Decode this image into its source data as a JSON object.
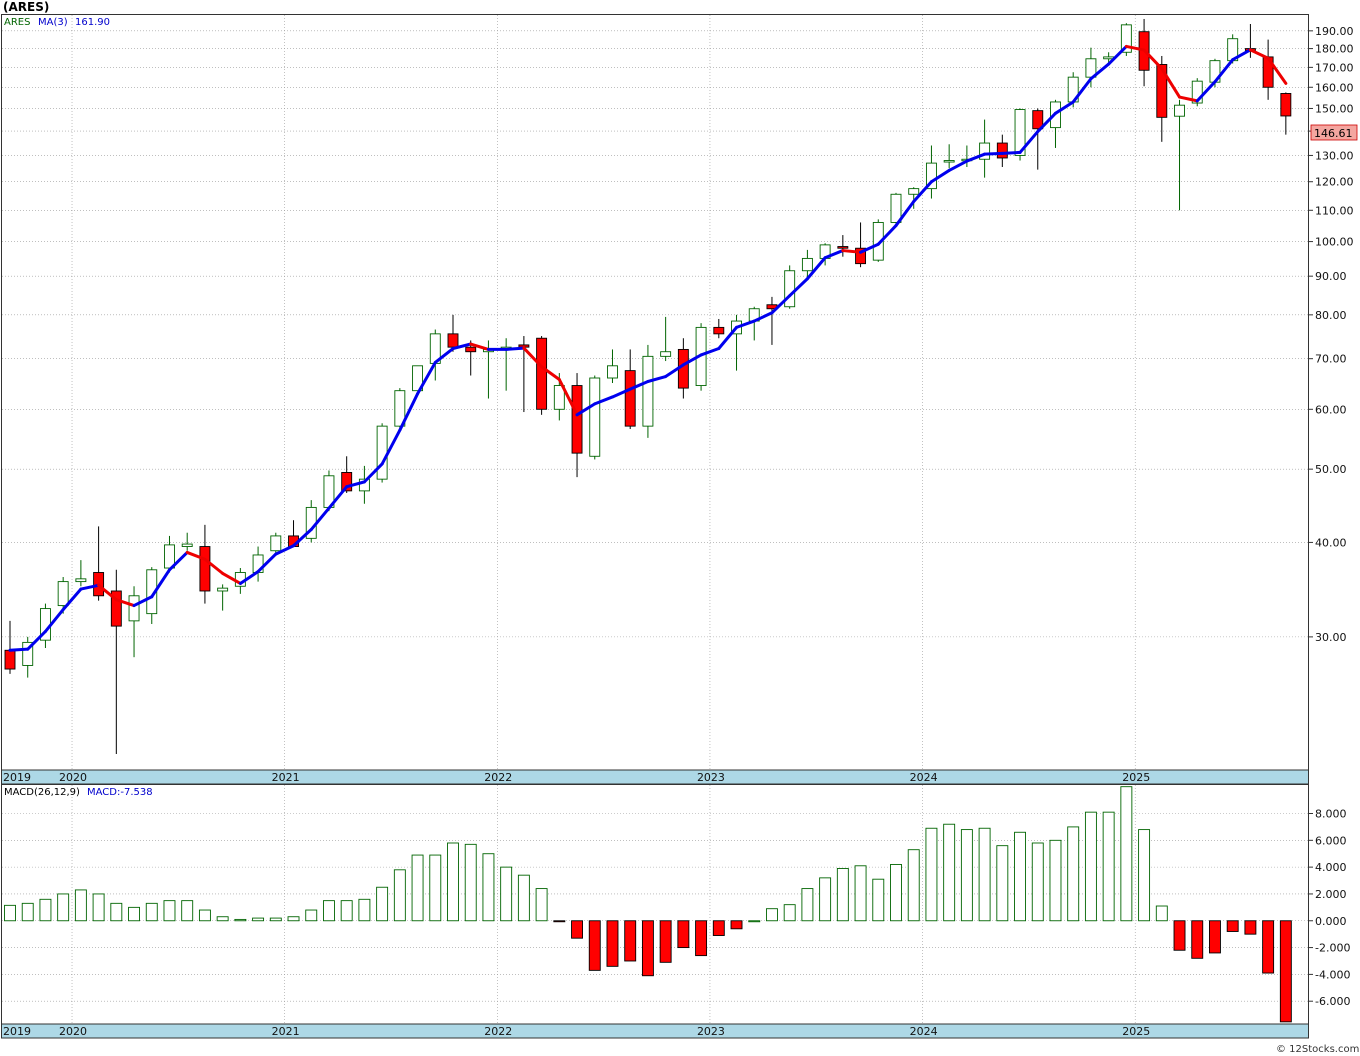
{
  "title": "(ARES)",
  "watermark": "© 12Stocks.com",
  "price_legend": {
    "symbol": "ARES",
    "ma_label": "MA(3)",
    "ma_value": "161.90"
  },
  "macd_legend": {
    "label": "MACD(26,12,9)",
    "value_label": "MACD:-7.538"
  },
  "last_price_tag": "146.61",
  "colors": {
    "up": "#006400",
    "down": "#ff0000",
    "ma_up": "#0000ee",
    "ma_down": "#ee0000",
    "axis_band": "#add8e6",
    "grid": "#999999"
  },
  "chart_data": [
    {
      "type": "candlestick",
      "interval": "monthly",
      "scale": "log",
      "ylim": [
        20,
        200
      ],
      "y_ticks": [
        "30.00",
        "40.00",
        "50.00",
        "60.00",
        "70.00",
        "80.00",
        "90.00",
        "100.00",
        "110.00",
        "120.00",
        "130.00",
        "140.00",
        "150.00",
        "160.00",
        "170.00",
        "180.00",
        "190.00"
      ],
      "x_year_labels": [
        "2019",
        "2020",
        "2021",
        "2022",
        "2023",
        "2024",
        "2025"
      ],
      "ma_period": 3,
      "candles": [
        [
          "2019-12",
          28.8,
          31.5,
          26.8,
          27.2
        ],
        [
          "2020-01",
          27.5,
          30.0,
          26.5,
          29.5
        ],
        [
          "2020-02",
          29.7,
          33.2,
          29.0,
          32.7
        ],
        [
          "2020-03",
          33.0,
          36.0,
          32.2,
          35.5
        ],
        [
          "2020-04",
          35.5,
          37.9,
          35.0,
          35.8
        ],
        [
          "2020-05",
          36.5,
          42.0,
          33.5,
          34.0
        ],
        [
          "2020-06",
          34.5,
          36.8,
          21.0,
          31.0
        ],
        [
          "2020-07",
          31.5,
          35.0,
          28.2,
          34.0
        ],
        [
          "2020-08",
          32.2,
          37.1,
          31.2,
          36.8
        ],
        [
          "2020-09",
          37.0,
          40.8,
          36.5,
          39.7
        ],
        [
          "2020-10",
          39.5,
          41.2,
          39.0,
          39.8
        ],
        [
          "2020-11",
          39.5,
          42.2,
          33.2,
          34.5
        ],
        [
          "2020-12",
          34.5,
          35.2,
          32.5,
          34.8
        ],
        [
          "2021-01",
          35.0,
          37.0,
          34.2,
          36.5
        ],
        [
          "2021-02",
          36.5,
          39.5,
          35.5,
          38.5
        ],
        [
          "2021-03",
          39.0,
          41.2,
          38.5,
          40.8
        ],
        [
          "2021-04",
          40.8,
          42.8,
          39.5,
          39.5
        ],
        [
          "2021-05",
          40.5,
          45.5,
          40.0,
          44.5
        ],
        [
          "2021-06",
          44.5,
          49.8,
          44.0,
          49.0
        ],
        [
          "2021-07",
          49.5,
          52.0,
          46.5,
          46.8
        ],
        [
          "2021-08",
          46.8,
          50.5,
          45.0,
          48.5
        ],
        [
          "2021-09",
          48.5,
          57.5,
          48.0,
          57.0
        ],
        [
          "2021-10",
          57.0,
          64.0,
          56.5,
          63.5
        ],
        [
          "2021-11",
          63.5,
          68.5,
          65.0,
          68.5
        ],
        [
          "2021-12",
          69.0,
          76.5,
          65.5,
          75.5
        ],
        [
          "2022-01",
          75.5,
          80.0,
          71.5,
          72.5
        ],
        [
          "2022-02",
          72.5,
          74.0,
          66.5,
          71.5
        ],
        [
          "2022-03",
          71.5,
          74.0,
          62.0,
          72.0
        ],
        [
          "2022-04",
          72.5,
          74.5,
          63.5,
          72.5
        ],
        [
          "2022-05",
          73.0,
          75.0,
          59.5,
          72.5
        ],
        [
          "2022-06",
          74.5,
          75.0,
          59.0,
          60.0
        ],
        [
          "2022-07",
          60.0,
          67.0,
          58.0,
          64.5
        ],
        [
          "2022-08",
          64.5,
          67.0,
          48.8,
          52.5
        ],
        [
          "2022-09",
          52.0,
          66.5,
          51.5,
          66.0
        ],
        [
          "2022-10",
          66.0,
          72.0,
          65.0,
          68.5
        ],
        [
          "2022-11",
          67.5,
          72.0,
          56.5,
          57.0
        ],
        [
          "2022-12",
          57.0,
          73.0,
          55.0,
          70.5
        ],
        [
          "2023-01",
          70.5,
          79.5,
          69.5,
          71.5
        ],
        [
          "2023-02",
          72.0,
          74.5,
          62.0,
          64.0
        ],
        [
          "2023-03",
          64.5,
          78.0,
          63.5,
          77.0
        ],
        [
          "2023-04",
          77.0,
          79.0,
          74.5,
          75.5
        ],
        [
          "2023-05",
          75.5,
          80.0,
          67.5,
          78.5
        ],
        [
          "2023-06",
          78.5,
          82.0,
          74.0,
          81.5
        ],
        [
          "2023-07",
          82.5,
          84.5,
          73.0,
          81.5
        ],
        [
          "2023-08",
          82.0,
          93.0,
          81.5,
          91.5
        ],
        [
          "2023-09",
          91.5,
          97.5,
          89.5,
          95.0
        ],
        [
          "2023-10",
          95.0,
          99.5,
          93.0,
          99.0
        ],
        [
          "2023-11",
          98.5,
          102.0,
          95.5,
          98.0
        ],
        [
          "2023-12",
          98.0,
          106.0,
          92.5,
          93.5
        ],
        [
          "2024-01",
          94.5,
          107.0,
          94.0,
          106.0
        ],
        [
          "2024-02",
          106.0,
          116.0,
          105.0,
          115.5
        ],
        [
          "2024-03",
          115.5,
          118.0,
          110.5,
          117.5
        ],
        [
          "2024-04",
          117.5,
          134.0,
          114.0,
          127.0
        ],
        [
          "2024-05",
          127.5,
          134.5,
          125.0,
          128.0
        ],
        [
          "2024-06",
          128.5,
          134.0,
          125.5,
          128.5
        ],
        [
          "2024-07",
          128.5,
          145.0,
          121.5,
          135.0
        ],
        [
          "2024-08",
          135.0,
          138.5,
          125.5,
          129.0
        ],
        [
          "2024-09",
          130.0,
          150.0,
          128.0,
          149.5
        ],
        [
          "2024-10",
          149.0,
          150.0,
          124.5,
          141.0
        ],
        [
          "2024-11",
          141.5,
          154.0,
          133.0,
          153.0
        ],
        [
          "2024-12",
          153.0,
          167.5,
          150.5,
          165.0
        ],
        [
          "2025-01",
          165.0,
          180.5,
          160.0,
          174.5
        ],
        [
          "2025-02",
          174.5,
          178.0,
          172.5,
          175.5
        ],
        [
          "2025-03",
          178.0,
          194.5,
          176.0,
          193.5
        ],
        [
          "2025-04",
          189.5,
          197.0,
          160.5,
          168.5
        ],
        [
          "2025-05",
          171.5,
          176.0,
          135.5,
          146.0
        ],
        [
          "2025-06",
          146.5,
          154.0,
          110.0,
          151.5
        ],
        [
          "2025-07",
          152.5,
          164.5,
          151.0,
          163.0
        ],
        [
          "2025-08",
          162.5,
          174.5,
          160.0,
          173.5
        ],
        [
          "2025-09",
          173.5,
          188.0,
          172.0,
          185.5
        ],
        [
          "2025-10",
          180.0,
          194.0,
          175.0,
          179.0
        ],
        [
          "2025-11",
          175.5,
          185.0,
          154.0,
          160.0
        ],
        [
          "2025-12",
          157.0,
          157.5,
          138.5,
          146.61
        ]
      ],
      "ma3": [
        28.8,
        28.9,
        30.5,
        32.6,
        34.7,
        35.1,
        33.6,
        33.0,
        33.9,
        36.8,
        38.8,
        38.0,
        36.4,
        35.3,
        36.6,
        38.6,
        39.6,
        41.6,
        44.4,
        47.4,
        48.1,
        50.8,
        56.3,
        62.9,
        69.2,
        72.2,
        73.2,
        72.0,
        72.0,
        72.3,
        68.3,
        65.7,
        59.0,
        61.0,
        62.3,
        63.8,
        65.3,
        66.3,
        68.7,
        70.8,
        72.2,
        77.0,
        78.5,
        80.5,
        84.8,
        89.3,
        95.2,
        97.3,
        96.8,
        99.2,
        105.0,
        113.0,
        120.0,
        124.2,
        127.8,
        130.5,
        130.8,
        131.2,
        139.8,
        147.8,
        153.0,
        164.2,
        171.7,
        181.2,
        179.2,
        169.3,
        155.3,
        153.5,
        162.7,
        174.0,
        179.3,
        174.8,
        161.9
      ]
    },
    {
      "type": "bar",
      "title": "MACD(26,12,9)",
      "ylim": [
        -7.7,
        10.2
      ],
      "y_ticks": [
        "-6.000",
        "-4.000",
        "-2.000",
        "0.000",
        "2.000",
        "4.000",
        "6.000",
        "8.000"
      ],
      "x_year_labels": [
        "2019",
        "2020",
        "2021",
        "2022",
        "2023",
        "2024",
        "2025"
      ],
      "values": [
        1.15,
        1.3,
        1.6,
        2.0,
        2.3,
        2.0,
        1.3,
        1.0,
        1.3,
        1.5,
        1.5,
        0.8,
        0.3,
        0.1,
        0.2,
        0.2,
        0.3,
        0.8,
        1.5,
        1.5,
        1.6,
        2.5,
        3.8,
        4.9,
        4.9,
        5.8,
        5.7,
        5.0,
        4.0,
        3.4,
        2.4,
        -0.05,
        -1.3,
        -3.7,
        -3.4,
        -3.0,
        -4.1,
        -3.1,
        -2.0,
        -2.6,
        -1.1,
        -0.6,
        0.0,
        0.9,
        1.2,
        2.4,
        3.2,
        3.9,
        4.1,
        3.1,
        4.2,
        5.3,
        6.9,
        7.2,
        6.8,
        6.9,
        5.6,
        6.6,
        5.8,
        6.0,
        7.0,
        8.1,
        8.1,
        10.0,
        6.8,
        1.1,
        -2.2,
        -2.8,
        -2.4,
        -0.8,
        -1.0,
        -3.9,
        -7.54
      ]
    }
  ]
}
